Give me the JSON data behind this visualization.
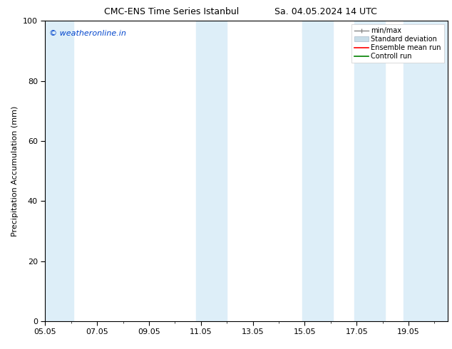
{
  "title_left": "CMC-ENS Time Series Istanbul",
  "title_right": "Sa. 04.05.2024 14 UTC",
  "ylabel": "Precipitation Accumulation (mm)",
  "watermark": "© weatheronline.in",
  "ylim": [
    0,
    100
  ],
  "xlim_start": 0,
  "xlim_end": 15.5,
  "xtick_labels": [
    "05.05",
    "07.05",
    "09.05",
    "11.05",
    "13.05",
    "15.05",
    "17.05",
    "19.05"
  ],
  "xtick_positions": [
    0,
    2,
    4,
    6,
    8,
    10,
    12,
    14
  ],
  "ytick_labels": [
    "0",
    "20",
    "40",
    "60",
    "80",
    "100"
  ],
  "ytick_positions": [
    0,
    20,
    40,
    60,
    80,
    100
  ],
  "shaded_bands": [
    {
      "x_start": -0.1,
      "x_end": 1.1,
      "color": "#ddeef8"
    },
    {
      "x_start": 5.8,
      "x_end": 7.0,
      "color": "#ddeef8"
    },
    {
      "x_start": 9.9,
      "x_end": 11.1,
      "color": "#ddeef8"
    },
    {
      "x_start": 11.9,
      "x_end": 13.1,
      "color": "#ddeef8"
    },
    {
      "x_start": 13.8,
      "x_end": 15.6,
      "color": "#ddeef8"
    }
  ],
  "legend_items": [
    {
      "label": "min/max",
      "color": "#999999",
      "type": "errorbar"
    },
    {
      "label": "Standard deviation",
      "color": "#c8dde8",
      "type": "bar"
    },
    {
      "label": "Ensemble mean run",
      "color": "red",
      "type": "line"
    },
    {
      "label": "Controll run",
      "color": "green",
      "type": "line"
    }
  ],
  "watermark_color": "#0044cc",
  "bg_color": "#ffffff",
  "font_size_title": 9,
  "font_size_axis": 8,
  "font_size_tick": 8,
  "font_size_legend": 7,
  "font_size_watermark": 8
}
